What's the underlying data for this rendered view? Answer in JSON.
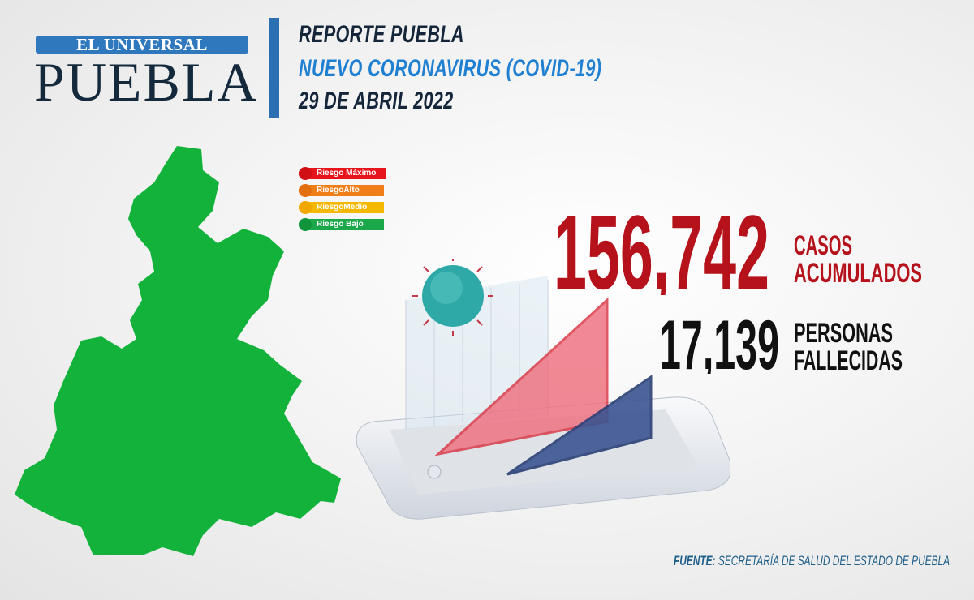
{
  "logo": {
    "top": "EL UNIVERSAL",
    "main": "PUEBLA"
  },
  "header": {
    "line1": "REPORTE PUEBLA",
    "line2": "NUEVO CORONAVIRUS (COVID-19)",
    "line3": "29 DE ABRIL 2022"
  },
  "legend": [
    {
      "label": "Riesgo Máximo",
      "color": "#e8141b"
    },
    {
      "label": "RiesgoAlto",
      "color": "#f07f1a"
    },
    {
      "label": "RiesgoMedio",
      "color": "#f5b800"
    },
    {
      "label": "Riesgo Bajo",
      "color": "#1aa84a"
    }
  ],
  "map": {
    "state": "Puebla",
    "risk_level": "Riesgo Bajo",
    "color": "#13b23a"
  },
  "stats": {
    "cases": {
      "value": "156,742",
      "label_1": "CASOS",
      "label_2": "ACUMULADOS",
      "color": "#b5121b"
    },
    "deaths": {
      "value": "17,139",
      "label_1": "PERSONAS",
      "label_2": "FALLECIDAS",
      "color": "#111111"
    }
  },
  "source": {
    "prefix": "FUENTE:",
    "text": " SECRETARÍA DE SALUD DEL ESTADO DE PUEBLA"
  }
}
